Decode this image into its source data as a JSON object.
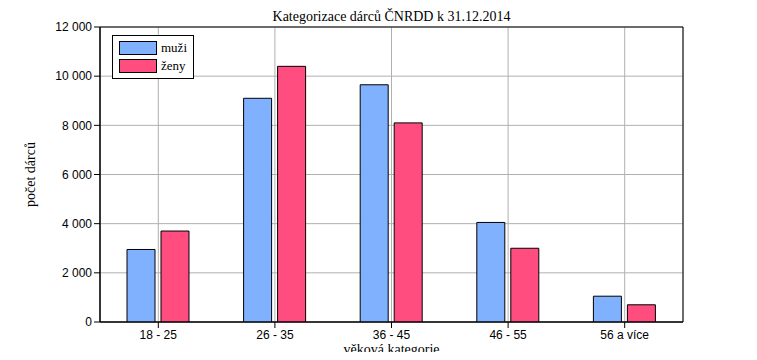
{
  "chart_data": {
    "type": "bar",
    "title": "Kategorizace dárců ČNRDD k 31.12.2014",
    "x_label": "věková kategorie",
    "y_label": "počet dárců",
    "categories": [
      "18 - 25",
      "26 - 35",
      "36 - 45",
      "46 - 55",
      "56 a více"
    ],
    "series": [
      {
        "name": "muži",
        "color": "#80b1ff",
        "values": [
          2950,
          9100,
          9650,
          4050,
          1050
        ]
      },
      {
        "name": "ženy",
        "color": "#ff4d80",
        "values": [
          3700,
          10400,
          8100,
          3000,
          700
        ]
      }
    ],
    "ylim": [
      0,
      12000
    ],
    "yticks": [
      0,
      {
        "value": 2000,
        "label": "2 000"
      },
      {
        "value": 4000,
        "label": "4 000"
      },
      {
        "value": 6000,
        "label": "6 000"
      },
      {
        "value": 8000,
        "label": "8 000"
      },
      {
        "value": 10000,
        "label": "10 000"
      },
      {
        "value": 12000,
        "label": "12 000"
      }
    ],
    "grid": true,
    "legend": "upper left"
  }
}
